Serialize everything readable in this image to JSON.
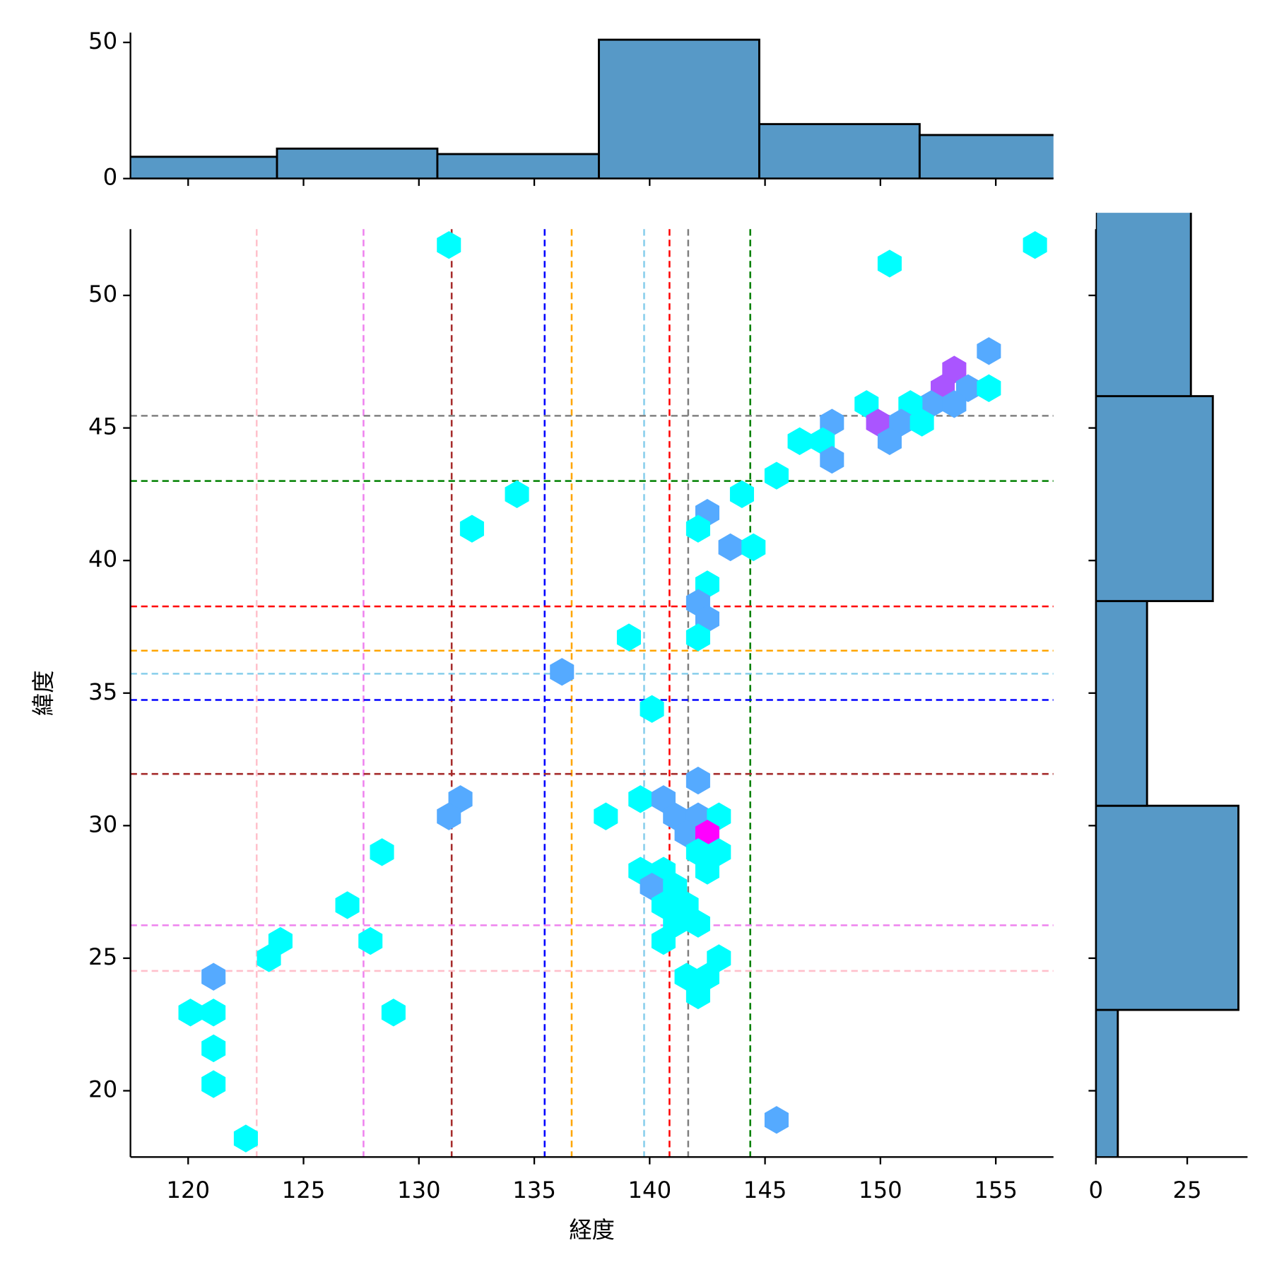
{
  "chart_data": [
    {
      "type": "hexbin",
      "xlabel": "経度",
      "ylabel": "緯度",
      "xlim": [
        117.5,
        157.5
      ],
      "ylim": [
        17.5,
        52.5
      ],
      "xticks": [
        120,
        125,
        130,
        135,
        140,
        145,
        150,
        155
      ],
      "yticks": [
        20,
        25,
        30,
        35,
        40,
        45,
        50
      ],
      "colormap": [
        "#00ffff",
        "#ff00ff"
      ],
      "x": [
        131.3,
        156.7,
        150.4,
        154.7,
        153.2,
        152.7,
        153.8,
        154.7,
        152.2,
        153.2,
        149.4,
        151.3,
        147.9,
        149.9,
        150.9,
        151.8,
        146.5,
        147.5,
        150.4,
        147.9,
        145.5,
        134.25,
        144.0,
        142.5,
        132.3,
        142.1,
        143.5,
        144.5,
        142.5,
        142.1,
        142.5,
        139.1,
        142.1,
        136.2,
        140.1,
        142.1,
        131.8,
        139.6,
        140.6,
        131.3,
        138.1,
        141.1,
        142.1,
        143.0,
        141.6,
        142.5,
        128.4,
        142.1,
        143.0,
        139.6,
        140.6,
        142.5,
        140.1,
        141.1,
        126.9,
        140.6,
        141.6,
        141.1,
        142.1,
        124.0,
        127.9,
        140.6,
        123.5,
        143.0,
        121.1,
        141.6,
        142.5,
        142.1,
        120.1,
        121.1,
        128.9,
        121.1,
        121.1,
        122.5,
        145.5
      ],
      "y": [
        51.9,
        51.9,
        51.2,
        47.9,
        47.2,
        46.5,
        46.5,
        46.5,
        45.9,
        45.9,
        45.9,
        45.9,
        45.2,
        45.2,
        45.2,
        45.2,
        44.5,
        44.5,
        44.5,
        43.8,
        43.2,
        42.5,
        42.5,
        41.8,
        41.2,
        41.2,
        40.5,
        40.5,
        39.1,
        38.4,
        37.8,
        37.1,
        37.1,
        35.8,
        34.4,
        31.7,
        31.0,
        31.0,
        31.0,
        30.35,
        30.35,
        30.35,
        30.35,
        30.35,
        29.7,
        29.7,
        29.0,
        29.0,
        29.0,
        28.3,
        28.3,
        28.3,
        27.7,
        27.7,
        27.0,
        27.0,
        27.0,
        26.3,
        26.3,
        25.65,
        25.65,
        25.65,
        25.0,
        25.0,
        24.3,
        24.3,
        24.3,
        23.6,
        22.95,
        22.95,
        22.95,
        21.6,
        20.25,
        18.2,
        18.9
      ],
      "counts": [
        1,
        1,
        1,
        2,
        3,
        3,
        2,
        1,
        2,
        2,
        1,
        1,
        2,
        3,
        2,
        1,
        1,
        1,
        2,
        2,
        1,
        1,
        1,
        2,
        1,
        1,
        2,
        1,
        1,
        2,
        2,
        1,
        1,
        2,
        1,
        2,
        2,
        1,
        2,
        2,
        1,
        2,
        2,
        1,
        2,
        4,
        1,
        1,
        1,
        1,
        1,
        1,
        2,
        1,
        1,
        1,
        1,
        1,
        1,
        1,
        1,
        1,
        1,
        1,
        2,
        1,
        1,
        1,
        1,
        1,
        1,
        1,
        1,
        1,
        2
      ],
      "vlines": [
        {
          "x": 122.97,
          "color": "pink"
        },
        {
          "x": 127.6,
          "color": "violet"
        },
        {
          "x": 131.42,
          "color": "brown"
        },
        {
          "x": 135.45,
          "color": "blue"
        },
        {
          "x": 136.62,
          "color": "orange"
        },
        {
          "x": 139.76,
          "color": "skyblue"
        },
        {
          "x": 140.86,
          "color": "red"
        },
        {
          "x": 141.67,
          "color": "gray"
        },
        {
          "x": 144.36,
          "color": "green"
        }
      ],
      "hlines": [
        {
          "y": 45.46,
          "color": "gray"
        },
        {
          "y": 43.0,
          "color": "green"
        },
        {
          "y": 38.27,
          "color": "red"
        },
        {
          "y": 36.6,
          "color": "orange"
        },
        {
          "y": 35.73,
          "color": "skyblue"
        },
        {
          "y": 34.74,
          "color": "blue"
        },
        {
          "y": 31.95,
          "color": "brown"
        },
        {
          "y": 26.24,
          "color": "violet"
        },
        {
          "y": 24.52,
          "color": "pink"
        }
      ]
    },
    {
      "type": "histogram",
      "orientation": "vertical",
      "bins": [
        116.9,
        123.85,
        130.8,
        137.8,
        144.75,
        151.7,
        158.65
      ],
      "counts": [
        8,
        11,
        9,
        51,
        20,
        16
      ],
      "color": "#5799c7",
      "edgecolor": "#000000",
      "xlim": [
        117.5,
        157.5
      ],
      "xticks": [
        120,
        125,
        130,
        135,
        140,
        145,
        150,
        155
      ],
      "xtick_labels": false,
      "ylim": [
        0,
        53.6
      ],
      "yticks": [
        0,
        50
      ]
    },
    {
      "type": "histogram",
      "orientation": "horizontal",
      "bins": [
        15.33,
        23.05,
        30.75,
        38.47,
        46.2,
        53.9
      ],
      "counts": [
        6,
        39,
        14,
        32,
        26
      ],
      "color": "#5799c7",
      "edgecolor": "#000000",
      "xlim": [
        0,
        41.5
      ],
      "xticks": [
        0,
        25
      ],
      "ylim": [
        17.5,
        52.5
      ],
      "yticks": [
        20,
        25,
        30,
        35,
        40,
        45,
        50
      ],
      "ytick_labels": false
    }
  ]
}
